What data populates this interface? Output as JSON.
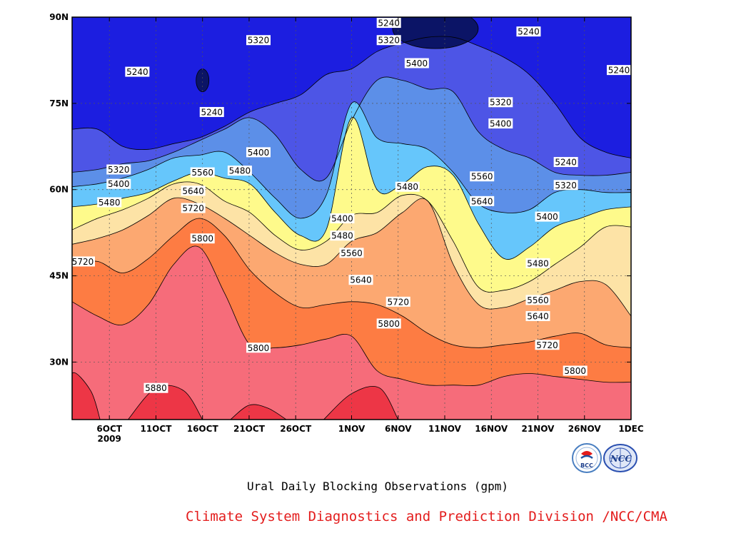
{
  "chart_data": {
    "type": "heatmap",
    "subtype": "filled-contour (Hovmoller, time vs latitude)",
    "title": "Ural Daily Blocking Observations (gpm)",
    "credit": "Climate System Diagnostics and Prediction Division /NCC/CMA",
    "xlabel": "",
    "ylabel": "",
    "x_range": [
      "2009-10-02",
      "2009-12-01"
    ],
    "y_range": [
      20,
      90
    ],
    "x_ticks": [
      {
        "date": "2009-10-06",
        "label": "6OCT"
      },
      {
        "date": "2009-10-11",
        "label": "11OCT"
      },
      {
        "date": "2009-10-16",
        "label": "16OCT"
      },
      {
        "date": "2009-10-21",
        "label": "21OCT"
      },
      {
        "date": "2009-10-26",
        "label": "26OCT"
      },
      {
        "date": "2009-11-01",
        "label": "1NOV"
      },
      {
        "date": "2009-11-06",
        "label": "6NOV"
      },
      {
        "date": "2009-11-11",
        "label": "11NOV"
      },
      {
        "date": "2009-11-16",
        "label": "16NOV"
      },
      {
        "date": "2009-11-21",
        "label": "21NOV"
      },
      {
        "date": "2009-11-26",
        "label": "26NOV"
      },
      {
        "date": "2009-12-01",
        "label": "1DEC"
      }
    ],
    "year_label": "2009",
    "y_ticks": [
      {
        "lat": 30,
        "label": "30N"
      },
      {
        "lat": 45,
        "label": "45N"
      },
      {
        "lat": 60,
        "label": "60N"
      },
      {
        "lat": 75,
        "label": "75N"
      },
      {
        "lat": 90,
        "label": "90N"
      }
    ],
    "grid": true,
    "levels": [
      5240,
      5320,
      5400,
      5480,
      5560,
      5640,
      5720,
      5800,
      5880
    ],
    "fill_colors": [
      "#0b1466",
      "#1c1ee0",
      "#4d55e6",
      "#5c8fe8",
      "#66c6fb",
      "#fefa8b",
      "#fde3a6",
      "#fca871",
      "#fd7c43",
      "#f66c7a",
      "#ed3646"
    ],
    "series": [
      {
        "value": 5240,
        "lat": [
          70.5,
          70.5,
          67.5,
          67.0,
          68.0,
          69.0,
          71.0,
          73.5,
          75.0,
          76.5,
          80.0,
          81.0,
          84.0,
          85.5,
          86.5,
          86.5,
          85.0,
          83.0,
          80.0,
          75.0,
          69.0,
          66.5,
          65.5
        ]
      },
      {
        "value": 5320,
        "lat": [
          63.0,
          63.5,
          64.5,
          65.0,
          66.5,
          68.5,
          70.5,
          72.5,
          69.5,
          63.5,
          62.0,
          72.0,
          79.0,
          79.0,
          77.5,
          77.0,
          70.0,
          67.0,
          65.5,
          63.0,
          62.5,
          62.5,
          63.0
        ]
      },
      {
        "value": 5400,
        "lat": [
          60.5,
          61.0,
          62.0,
          63.5,
          65.5,
          66.0,
          66.5,
          63.0,
          58.5,
          55.0,
          59.0,
          75.0,
          69.0,
          68.0,
          67.0,
          63.0,
          57.5,
          56.0,
          56.5,
          59.5,
          60.0,
          59.5,
          59.5
        ]
      },
      {
        "value": 5480,
        "lat": [
          57.0,
          57.5,
          58.5,
          59.5,
          61.5,
          63.0,
          62.0,
          61.0,
          56.0,
          52.0,
          53.0,
          72.5,
          60.0,
          61.0,
          64.0,
          62.5,
          54.0,
          48.0,
          50.0,
          53.5,
          55.0,
          56.5,
          57.0
        ]
      },
      {
        "value": 5560,
        "lat": [
          53.0,
          55.0,
          56.5,
          58.5,
          61.0,
          61.0,
          58.0,
          56.0,
          52.0,
          49.5,
          51.0,
          55.5,
          56.0,
          59.0,
          58.0,
          51.0,
          43.0,
          42.5,
          44.0,
          47.0,
          50.0,
          53.5,
          53.5
        ]
      },
      {
        "value": 5640,
        "lat": [
          50.5,
          51.5,
          53.0,
          55.5,
          58.5,
          57.5,
          55.0,
          52.0,
          49.0,
          47.0,
          47.0,
          51.0,
          52.5,
          56.0,
          58.0,
          47.0,
          40.0,
          39.5,
          41.0,
          42.5,
          44.0,
          43.5,
          38.0
        ]
      },
      {
        "value": 5720,
        "lat": [
          47.0,
          47.5,
          45.5,
          48.0,
          52.0,
          55.0,
          52.0,
          46.0,
          42.0,
          39.5,
          40.0,
          40.5,
          40.0,
          38.0,
          35.0,
          33.0,
          32.5,
          33.0,
          33.5,
          34.5,
          35.0,
          33.0,
          32.5
        ]
      },
      {
        "value": 5800,
        "lat": [
          40.5,
          38.0,
          36.5,
          40.0,
          47.0,
          50.0,
          42.0,
          33.0,
          32.5,
          33.0,
          34.0,
          34.5,
          28.5,
          27.0,
          26.0,
          26.0,
          26.0,
          27.5,
          28.0,
          27.5,
          27.0,
          26.5,
          26.5
        ]
      }
    ],
    "highs_5880": [
      {
        "lat": [
          20,
          28,
          25,
          20
        ],
        "dates": [
          "2009-10-02",
          "2009-10-02",
          "2009-10-04",
          "2009-10-05"
        ]
      },
      {
        "lat": [
          20,
          25.5,
          25.0,
          20
        ],
        "dates": [
          "2009-10-08",
          "2009-10-11",
          "2009-10-14",
          "2009-10-16"
        ]
      },
      {
        "lat": [
          20,
          22.5,
          22.0,
          20
        ],
        "dates": [
          "2009-10-19",
          "2009-10-21",
          "2009-10-23",
          "2009-10-25"
        ]
      },
      {
        "lat": [
          20,
          24.5,
          25.5,
          20
        ],
        "dates": [
          "2009-10-29",
          "2009-11-01",
          "2009-11-04",
          "2009-11-06"
        ]
      }
    ],
    "lows_5240_core": [
      {
        "date": "2009-10-16",
        "lat": 79.0
      },
      {
        "date": "2009-11-10",
        "lat": 88.0
      }
    ],
    "contour_labels": [
      {
        "text": "5240",
        "date": "2009-10-09",
        "lat": 80.5
      },
      {
        "text": "5240",
        "date": "2009-10-17",
        "lat": 73.5
      },
      {
        "text": "5320",
        "date": "2009-10-22",
        "lat": 86.0
      },
      {
        "text": "5240",
        "date": "2009-11-05",
        "lat": 89.0
      },
      {
        "text": "5320",
        "date": "2009-11-05",
        "lat": 86.0
      },
      {
        "text": "5240",
        "date": "2009-11-20",
        "lat": 87.5
      },
      {
        "text": "5240",
        "date": "2009-11-30",
        "lat": 80.8
      },
      {
        "text": "5400",
        "date": "2009-11-08",
        "lat": 82.0
      },
      {
        "text": "5320",
        "date": "2009-11-17",
        "lat": 75.2
      },
      {
        "text": "5400",
        "date": "2009-11-17",
        "lat": 71.5
      },
      {
        "text": "5400",
        "date": "2009-10-22",
        "lat": 66.5
      },
      {
        "text": "5320",
        "date": "2009-10-07",
        "lat": 63.5
      },
      {
        "text": "5560",
        "date": "2009-10-16",
        "lat": 63.0
      },
      {
        "text": "5480",
        "date": "2009-10-20",
        "lat": 63.3
      },
      {
        "text": "5240",
        "date": "2009-11-24",
        "lat": 64.8
      },
      {
        "text": "5400",
        "date": "2009-10-07",
        "lat": 61.0
      },
      {
        "text": "5640",
        "date": "2009-10-15",
        "lat": 59.8
      },
      {
        "text": "5480",
        "date": "2009-11-07",
        "lat": 60.5
      },
      {
        "text": "5560",
        "date": "2009-11-15",
        "lat": 62.3
      },
      {
        "text": "5320",
        "date": "2009-11-24",
        "lat": 60.8
      },
      {
        "text": "5480",
        "date": "2009-10-06",
        "lat": 57.8
      },
      {
        "text": "5720",
        "date": "2009-10-15",
        "lat": 56.8
      },
      {
        "text": "5640",
        "date": "2009-11-15",
        "lat": 58.0
      },
      {
        "text": "5400",
        "date": "2009-10-31",
        "lat": 55.0
      },
      {
        "text": "5400",
        "date": "2009-11-22",
        "lat": 55.3
      },
      {
        "text": "5480",
        "date": "2009-10-31",
        "lat": 52.0
      },
      {
        "text": "5800",
        "date": "2009-10-16",
        "lat": 51.5
      },
      {
        "text": "5560",
        "date": "2009-11-01",
        "lat": 49.0
      },
      {
        "text": "5720",
        "date": "2009-10-02",
        "lat": 47.5
      },
      {
        "text": "5480",
        "date": "2009-11-21",
        "lat": 47.2
      },
      {
        "text": "5640",
        "date": "2009-11-02",
        "lat": 44.3
      },
      {
        "text": "5720",
        "date": "2009-11-06",
        "lat": 40.5
      },
      {
        "text": "5560",
        "date": "2009-11-21",
        "lat": 40.8
      },
      {
        "text": "5640",
        "date": "2009-11-21",
        "lat": 38.0
      },
      {
        "text": "5800",
        "date": "2009-11-05",
        "lat": 36.7
      },
      {
        "text": "5720",
        "date": "2009-11-22",
        "lat": 33.0
      },
      {
        "text": "5800",
        "date": "2009-10-22",
        "lat": 32.5
      },
      {
        "text": "5800",
        "date": "2009-11-25",
        "lat": 28.5
      },
      {
        "text": "5880",
        "date": "2009-10-11",
        "lat": 25.5
      }
    ]
  },
  "logos": [
    {
      "name": "BCC",
      "label": "BCC"
    },
    {
      "name": "NCC",
      "label": "NCC"
    }
  ],
  "colors": {
    "credit_text": "#e31c1c",
    "grid_line": "#555555",
    "contour_line": "#000000"
  }
}
